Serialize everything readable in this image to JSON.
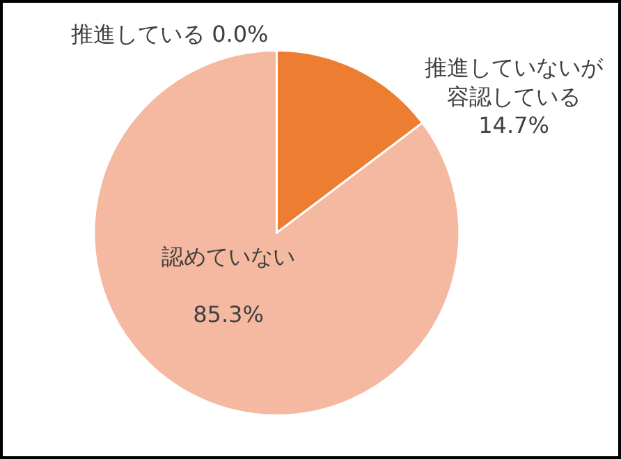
{
  "chart_data": {
    "type": "pie",
    "categories": [
      "推進している",
      "推進していないが容認している",
      "認めていない"
    ],
    "values": [
      0.0,
      14.7,
      85.3
    ],
    "value_labels": [
      "0.0%",
      "14.7%",
      "85.3%"
    ],
    "colors": [
      "#4472c4",
      "#ed7d31",
      "#f4b9a0"
    ],
    "legend": false
  }
}
